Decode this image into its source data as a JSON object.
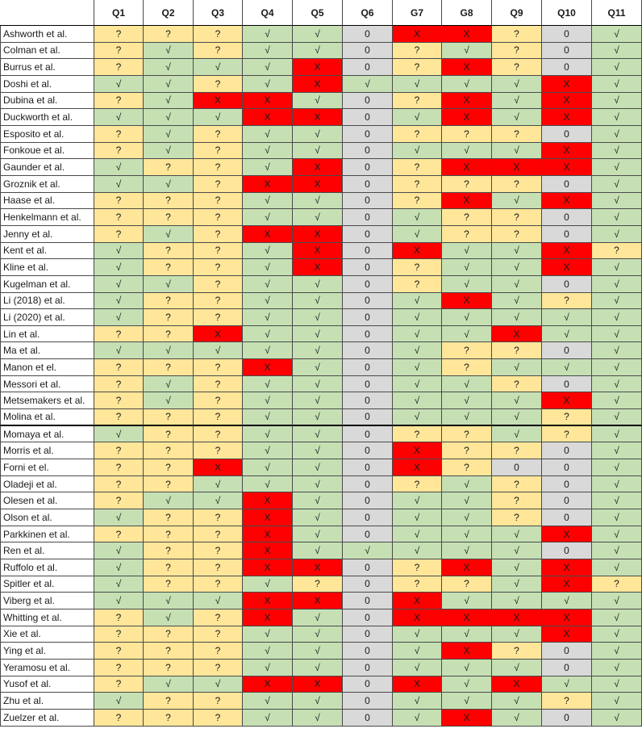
{
  "columns": [
    "",
    "Q1",
    "Q2",
    "Q3",
    "Q4",
    "Q5",
    "Q6",
    "G7",
    "G8",
    "Q9",
    "Q10",
    "Q11"
  ],
  "legend_colors": {
    "√": "#c6e0b4",
    "?": "#ffe699",
    "X": "#ff0000",
    "0": "#d9d9d9"
  },
  "rows": [
    {
      "name": "Ashworth et al.",
      "values": [
        "?",
        "?",
        "?",
        "√",
        "√",
        "0",
        "X",
        "X",
        "?",
        "0",
        "√"
      ]
    },
    {
      "name": "Colman et al.",
      "values": [
        "?",
        "√",
        "?",
        "√",
        "√",
        "0",
        "?",
        "√",
        "?",
        "0",
        "√"
      ]
    },
    {
      "name": "Burrus et al.",
      "values": [
        "?",
        "√",
        "√",
        "√",
        "X",
        "0",
        "?",
        "X",
        "?",
        "0",
        "√"
      ]
    },
    {
      "name": "Doshi et al.",
      "values": [
        "√",
        "√",
        "?",
        "√",
        "X",
        "√",
        "√",
        "√",
        "√",
        "X",
        "√"
      ]
    },
    {
      "name": "Dubina et al.",
      "values": [
        "?",
        "√",
        "X",
        "X",
        "√",
        "0",
        "?",
        "X",
        "√",
        "X",
        "√"
      ]
    },
    {
      "name": "Duckworth et al.",
      "values": [
        "√",
        "√",
        "√",
        "X",
        "X",
        "0",
        "√",
        "X",
        "√",
        "X",
        "√"
      ]
    },
    {
      "name": "Esposito et al.",
      "values": [
        "?",
        "√",
        "?",
        "√",
        "√",
        "0",
        "?",
        "?",
        "?",
        "0",
        "√"
      ]
    },
    {
      "name": "Fonkoue et al.",
      "values": [
        "?",
        "√",
        "?",
        "√",
        "√",
        "0",
        "√",
        "√",
        "√",
        "X",
        "√"
      ]
    },
    {
      "name": "Gaunder et al.",
      "values": [
        "√",
        "?",
        "?",
        "√",
        "X",
        "0",
        "?",
        "X",
        "X",
        "X",
        "√"
      ]
    },
    {
      "name": "Groznik et al.",
      "values": [
        "√",
        "√",
        "?",
        "X",
        "X",
        "0",
        "?",
        "?",
        "?",
        "0",
        "√"
      ]
    },
    {
      "name": "Haase et al.",
      "values": [
        "?",
        "?",
        "?",
        "√",
        "√",
        "0",
        "?",
        "X",
        "√",
        "X",
        "√"
      ]
    },
    {
      "name": "Henkelmann et al.",
      "values": [
        "?",
        "?",
        "?",
        "√",
        "√",
        "0",
        "√",
        "?",
        "?",
        "0",
        "√"
      ]
    },
    {
      "name": "Jenny et al.",
      "values": [
        "?",
        "√",
        "?",
        "X",
        "X",
        "0",
        "√",
        "?",
        "?",
        "0",
        "√"
      ]
    },
    {
      "name": "Kent et al.",
      "values": [
        "√",
        "?",
        "?",
        "√",
        "X",
        "0",
        "X",
        "√",
        "√",
        "X",
        "?"
      ]
    },
    {
      "name": "Kline et al.",
      "values": [
        "√",
        "?",
        "?",
        "√",
        "X",
        "0",
        "?",
        "√",
        "√",
        "X",
        "√"
      ]
    },
    {
      "name": "Kugelman et al.",
      "values": [
        "√",
        "√",
        "?",
        "√",
        "√",
        "0",
        "?",
        "√",
        "√",
        "0",
        "√"
      ]
    },
    {
      "name": "Li (2018) et al.",
      "values": [
        "√",
        "?",
        "?",
        "√",
        "√",
        "0",
        "√",
        "X",
        "√",
        "?",
        "√"
      ]
    },
    {
      "name": "Li (2020) et al.",
      "values": [
        "√",
        "?",
        "?",
        "√",
        "√",
        "0",
        "√",
        "√",
        "√",
        "√",
        "√"
      ]
    },
    {
      "name": "Lin et al.",
      "values": [
        "?",
        "?",
        "X",
        "√",
        "√",
        "0",
        "√",
        "√",
        "X",
        "√",
        "√"
      ]
    },
    {
      "name": "Ma et al.",
      "values": [
        "√",
        "√",
        "√",
        "√",
        "√",
        "0",
        "√",
        "?",
        "?",
        "0",
        "√"
      ]
    },
    {
      "name": "Manon et el.",
      "values": [
        "?",
        "?",
        "?",
        "X",
        "√",
        "0",
        "√",
        "?",
        "√",
        "√",
        "√"
      ]
    },
    {
      "name": "Messori et al.",
      "values": [
        "?",
        "√",
        "?",
        "√",
        "√",
        "0",
        "√",
        "√",
        "?",
        "0",
        "√"
      ]
    },
    {
      "name": "Metsemakers et al.",
      "values": [
        "?",
        "√",
        "?",
        "√",
        "√",
        "0",
        "√",
        "√",
        "√",
        "X",
        "√"
      ]
    },
    {
      "name": "Molina et al.",
      "values": [
        "?",
        "?",
        "?",
        "√",
        "√",
        "0",
        "√",
        "√",
        "√",
        "?",
        "√"
      ]
    },
    {
      "name": "Momaya et al.",
      "values": [
        "√",
        "?",
        "?",
        "√",
        "√",
        "0",
        "?",
        "?",
        "√",
        "?",
        "√"
      ]
    },
    {
      "name": "Morris et al.",
      "values": [
        "?",
        "?",
        "?",
        "√",
        "√",
        "0",
        "X",
        "?",
        "?",
        "0",
        "√"
      ]
    },
    {
      "name": "Forni et el.",
      "values": [
        "?",
        "?",
        "X",
        "√",
        "√",
        "0",
        "X",
        "?",
        "0",
        "0",
        "√"
      ]
    },
    {
      "name": "Oladeji et al.",
      "values": [
        "?",
        "?",
        "√",
        "√",
        "√",
        "0",
        "?",
        "√",
        "?",
        "0",
        "√"
      ]
    },
    {
      "name": "Olesen et al.",
      "values": [
        "?",
        "√",
        "√",
        "X",
        "√",
        "0",
        "√",
        "√",
        "?",
        "0",
        "√"
      ]
    },
    {
      "name": "Olson et al.",
      "values": [
        "√",
        "?",
        "?",
        "X",
        "√",
        "0",
        "√",
        "√",
        "?",
        "0",
        "√"
      ]
    },
    {
      "name": "Parkkinen et al.",
      "values": [
        "?",
        "?",
        "?",
        "X",
        "√",
        "0",
        "√",
        "√",
        "√",
        "X",
        "√"
      ]
    },
    {
      "name": "Ren et al.",
      "values": [
        "√",
        "?",
        "?",
        "X",
        "√",
        "√",
        "√",
        "√",
        "√",
        "0",
        "√"
      ]
    },
    {
      "name": "Ruffolo et al.",
      "values": [
        "√",
        "?",
        "?",
        "X",
        "X",
        "0",
        "?",
        "X",
        "√",
        "X",
        "√"
      ]
    },
    {
      "name": "Spitler et al.",
      "values": [
        "√",
        "?",
        "?",
        "√",
        "?",
        "0",
        "?",
        "?",
        "√",
        "X",
        "?"
      ]
    },
    {
      "name": "Viberg et al.",
      "values": [
        "√",
        "√",
        "√",
        "X",
        "X",
        "0",
        "X",
        "√",
        "√",
        "√",
        "√"
      ]
    },
    {
      "name": "Whitting et al.",
      "values": [
        "?",
        "√",
        "?",
        "X",
        "√",
        "0",
        "X",
        "X",
        "X",
        "X",
        "√"
      ]
    },
    {
      "name": "Xie et al.",
      "values": [
        "?",
        "?",
        "?",
        "√",
        "√",
        "0",
        "√",
        "√",
        "√",
        "X",
        "√"
      ]
    },
    {
      "name": "Ying et al.",
      "values": [
        "?",
        "?",
        "?",
        "√",
        "√",
        "0",
        "√",
        "X",
        "?",
        "0",
        "√"
      ]
    },
    {
      "name": "Yeramosu et al.",
      "values": [
        "?",
        "?",
        "?",
        "√",
        "√",
        "0",
        "√",
        "√",
        "√",
        "0",
        "√"
      ]
    },
    {
      "name": "Yusof et al.",
      "values": [
        "?",
        "√",
        "√",
        "X",
        "X",
        "0",
        "X",
        "√",
        "X",
        "√",
        "√"
      ]
    },
    {
      "name": "Zhu et al.",
      "values": [
        "√",
        "?",
        "?",
        "√",
        "√",
        "0",
        "√",
        "√",
        "√",
        "?",
        "√"
      ]
    },
    {
      "name": "Zuelzer et al.",
      "values": [
        "?",
        "?",
        "?",
        "√",
        "√",
        "0",
        "√",
        "X",
        "√",
        "0",
        "√"
      ]
    }
  ]
}
